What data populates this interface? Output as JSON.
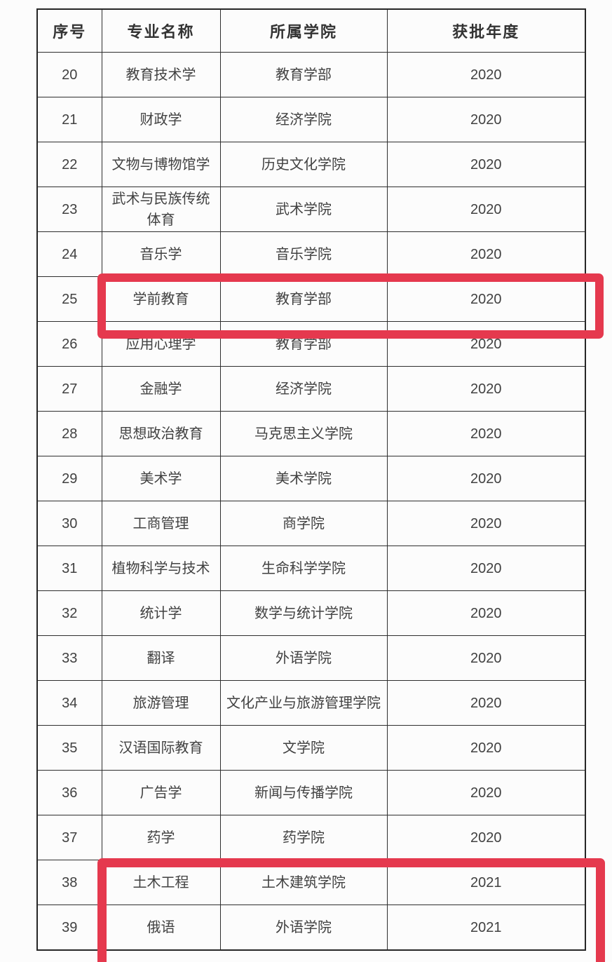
{
  "page": {
    "background_color": "#fcfcfc",
    "text_color": "#414141",
    "grid_line_color": "#2e2e2e"
  },
  "table": {
    "headers": [
      "序号",
      "专业名称",
      "所属学院",
      "获批年度"
    ],
    "rows": [
      {
        "no": "20",
        "major": "教育技术学",
        "college": "教育学部",
        "year": "2020",
        "highlighted": false
      },
      {
        "no": "21",
        "major": "财政学",
        "college": "经济学院",
        "year": "2020",
        "highlighted": false
      },
      {
        "no": "22",
        "major": "文物与博物馆学",
        "college": "历史文化学院",
        "year": "2020",
        "highlighted": false
      },
      {
        "no": "23",
        "major": "武术与民族传统\n体育",
        "college": "武术学院",
        "year": "2020",
        "highlighted": false
      },
      {
        "no": "24",
        "major": "音乐学",
        "college": "音乐学院",
        "year": "2020",
        "highlighted": false
      },
      {
        "no": "25",
        "major": "学前教育",
        "college": "教育学部",
        "year": "2020",
        "highlighted": true
      },
      {
        "no": "26",
        "major": "应用心理学",
        "college": "教育学部",
        "year": "2020",
        "highlighted": false
      },
      {
        "no": "27",
        "major": "金融学",
        "college": "经济学院",
        "year": "2020",
        "highlighted": false
      },
      {
        "no": "28",
        "major": "思想政治教育",
        "college": "马克思主义学院",
        "year": "2020",
        "highlighted": false
      },
      {
        "no": "29",
        "major": "美术学",
        "college": "美术学院",
        "year": "2020",
        "highlighted": false
      },
      {
        "no": "30",
        "major": "工商管理",
        "college": "商学院",
        "year": "2020",
        "highlighted": false
      },
      {
        "no": "31",
        "major": "植物科学与技术",
        "college": "生命科学学院",
        "year": "2020",
        "highlighted": false
      },
      {
        "no": "32",
        "major": "统计学",
        "college": "数学与统计学院",
        "year": "2020",
        "highlighted": false
      },
      {
        "no": "33",
        "major": "翻译",
        "college": "外语学院",
        "year": "2020",
        "highlighted": false
      },
      {
        "no": "34",
        "major": "旅游管理",
        "college": "文化产业与旅游管理学院",
        "year": "2020",
        "highlighted": false
      },
      {
        "no": "35",
        "major": "汉语国际教育",
        "college": "文学院",
        "year": "2020",
        "highlighted": false
      },
      {
        "no": "36",
        "major": "广告学",
        "college": "新闻与传播学院",
        "year": "2020",
        "highlighted": false
      },
      {
        "no": "37",
        "major": "药学",
        "college": "药学院",
        "year": "2020",
        "highlighted": false
      },
      {
        "no": "38",
        "major": "土木工程",
        "college": "土木建筑学院",
        "year": "2021",
        "highlighted": true
      },
      {
        "no": "39",
        "major": "俄语",
        "college": "外语学院",
        "year": "2021",
        "highlighted": true
      }
    ]
  },
  "highlights": {
    "color": "#e5394e",
    "boxes": [
      {
        "id": "hl-row25",
        "covers": "row 25 (学前教育), columns 专业名称–获批年度"
      },
      {
        "id": "hl-rows38-39",
        "covers": "rows 38–39 (土木工程, 俄语), columns 专业名称–获批年度"
      }
    ]
  }
}
